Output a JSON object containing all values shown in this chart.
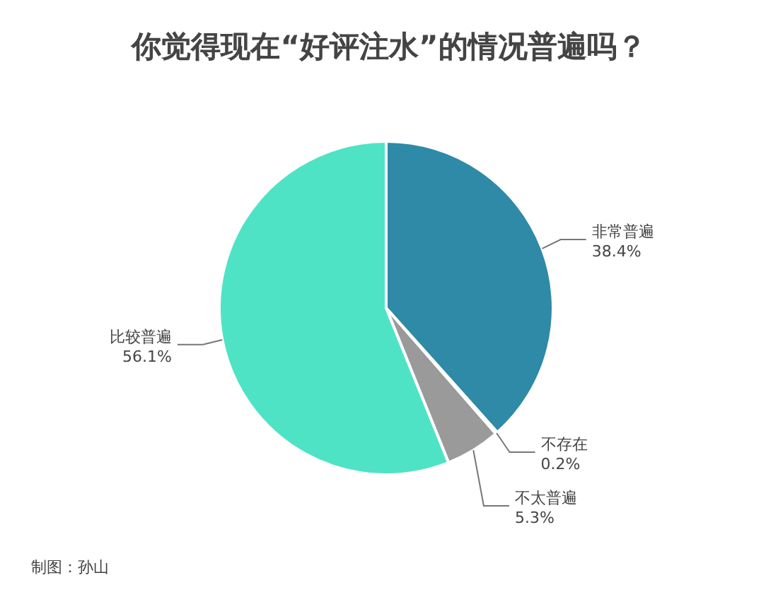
{
  "chart_data": {
    "type": "pie",
    "title": "你觉得现在“好评注水”的情况普遍吗？",
    "categories": [
      "非常普遍",
      "不存在",
      "不太普遍",
      "比较普遍"
    ],
    "values": [
      38.4,
      0.2,
      5.3,
      56.1
    ],
    "colors": [
      "#2e8aa6",
      "#d0d0d0",
      "#9a9a9a",
      "#4fe3c5"
    ],
    "value_labels": [
      "38.4%",
      "0.2%",
      "5.3%",
      "56.1%"
    ],
    "annotations": [
      "制图：孙山"
    ]
  }
}
